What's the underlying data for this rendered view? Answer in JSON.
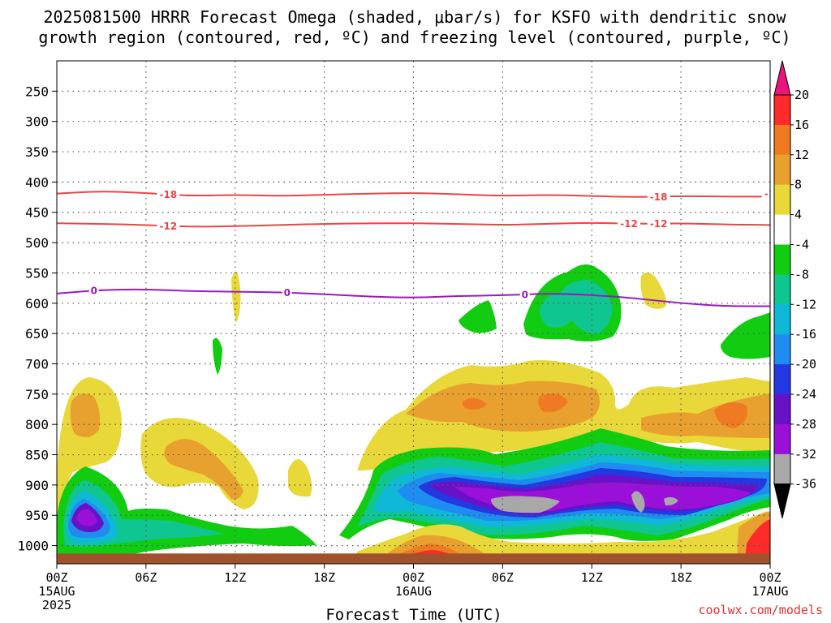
{
  "title_line1": "2025081500 HRRR Forecast Omega (shaded, μbar/s) for KSFO with dendritic snow",
  "title_line2": "growth region (contoured, red, ºC) and freezing level (contoured, purple, ºC)",
  "credit": "coolwx.com/models",
  "chart_data": {
    "type": "time-height cross section",
    "title": "2025081500 HRRR Forecast Omega (shaded, μbar/s) for KSFO with dendritic snow growth region (contoured, red, ºC) and freezing level (contoured, purple, ºC)",
    "xlabel": "Forecast Time (UTC)",
    "x_ticks": [
      {
        "h": 0,
        "l1": "00Z",
        "l2": "15AUG",
        "l3": "2025"
      },
      {
        "h": 6,
        "l1": "06Z",
        "l2": "",
        "l3": ""
      },
      {
        "h": 12,
        "l1": "12Z",
        "l2": "",
        "l3": ""
      },
      {
        "h": 18,
        "l1": "18Z",
        "l2": "",
        "l3": ""
      },
      {
        "h": 24,
        "l1": "00Z",
        "l2": "16AUG",
        "l3": ""
      },
      {
        "h": 30,
        "l1": "06Z",
        "l2": "",
        "l3": ""
      },
      {
        "h": 36,
        "l1": "12Z",
        "l2": "",
        "l3": ""
      },
      {
        "h": 42,
        "l1": "18Z",
        "l2": "",
        "l3": ""
      },
      {
        "h": 48,
        "l1": "00Z",
        "l2": "17AUG",
        "l3": ""
      }
    ],
    "y_ticks": [
      250,
      300,
      350,
      400,
      450,
      500,
      550,
      600,
      650,
      700,
      750,
      800,
      850,
      900,
      950,
      1000
    ],
    "ylim_hpa": [
      1030,
      200
    ],
    "xlim_hours": [
      0,
      48
    ],
    "grid": true,
    "colorbar": {
      "ticks": [
        "20",
        "16",
        "12",
        "8",
        "4",
        "-4",
        "-8",
        "-12",
        "-16",
        "-20",
        "-24",
        "-28",
        "-32",
        "-36"
      ],
      "bands": [
        {
          "lo": 16,
          "hi": 20,
          "color": "#ff2a2a"
        },
        {
          "lo": 12,
          "hi": 16,
          "color": "#f07a22"
        },
        {
          "lo": 8,
          "hi": 12,
          "color": "#e8a12f"
        },
        {
          "lo": 4,
          "hi": 8,
          "color": "#e8d83a"
        },
        {
          "lo": -4,
          "hi": 4,
          "color": "#ffffff"
        },
        {
          "lo": -8,
          "hi": -4,
          "color": "#12cc12"
        },
        {
          "lo": -12,
          "hi": -8,
          "color": "#10c690"
        },
        {
          "lo": -16,
          "hi": -12,
          "color": "#10b8d8"
        },
        {
          "lo": -20,
          "hi": -16,
          "color": "#1e8cf0"
        },
        {
          "lo": -24,
          "hi": -20,
          "color": "#2338e0"
        },
        {
          "lo": -28,
          "hi": -24,
          "color": "#6812c8"
        },
        {
          "lo": -32,
          "hi": -28,
          "color": "#9a10d8"
        },
        {
          "lo": -36,
          "hi": -32,
          "color": "#a8a8a8"
        }
      ],
      "top_arrow_color": "#e8157e",
      "bottom_arrow_color": "#000000"
    },
    "contours": [
      {
        "label": "-18",
        "color": "#ee4444",
        "label_at": [
          7.5,
          40.5,
          48.2
        ],
        "points": [
          [
            0,
            419
          ],
          [
            3,
            415
          ],
          [
            6,
            418
          ],
          [
            9,
            423
          ],
          [
            12,
            421
          ],
          [
            15,
            423
          ],
          [
            18,
            421
          ],
          [
            21,
            419
          ],
          [
            24,
            418
          ],
          [
            27,
            420
          ],
          [
            30,
            423
          ],
          [
            33,
            421
          ],
          [
            36,
            423
          ],
          [
            39,
            425
          ],
          [
            42,
            423
          ],
          [
            45,
            424
          ],
          [
            48,
            424
          ]
        ]
      },
      {
        "label": "-12",
        "color": "#ee4444",
        "label_at": [
          7.5,
          40.5,
          38.5
        ],
        "points": [
          [
            0,
            468
          ],
          [
            3,
            469
          ],
          [
            6,
            471
          ],
          [
            9,
            474
          ],
          [
            12,
            473
          ],
          [
            15,
            471
          ],
          [
            18,
            469
          ],
          [
            21,
            468
          ],
          [
            24,
            468
          ],
          [
            27,
            469
          ],
          [
            30,
            471
          ],
          [
            33,
            469
          ],
          [
            36,
            467
          ],
          [
            39,
            469
          ],
          [
            42,
            468
          ],
          [
            45,
            470
          ],
          [
            48,
            471
          ]
        ]
      },
      {
        "label": "0",
        "color": "#9a18c8",
        "label_at": [
          2.5,
          15.5,
          31.5
        ],
        "points": [
          [
            0,
            584
          ],
          [
            3,
            578
          ],
          [
            6,
            577
          ],
          [
            9,
            580
          ],
          [
            12,
            581
          ],
          [
            15,
            582
          ],
          [
            18,
            585
          ],
          [
            21,
            589
          ],
          [
            24,
            591
          ],
          [
            27,
            588
          ],
          [
            30,
            587
          ],
          [
            33,
            584
          ],
          [
            36,
            586
          ],
          [
            39,
            592
          ],
          [
            42,
            600
          ],
          [
            45,
            605
          ],
          [
            48,
            605
          ]
        ]
      }
    ],
    "surface_hpa": 1013
  }
}
